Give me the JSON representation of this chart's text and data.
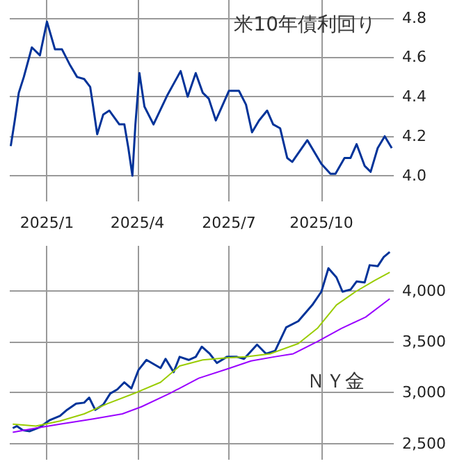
{
  "chart_data": [
    {
      "type": "line",
      "title": "米10年債利回り",
      "marker": "none",
      "grid": true,
      "xlim": [
        "2024-11-25",
        "2025-12-12"
      ],
      "xticks": [
        {
          "value": "2025-01-01",
          "label": "2025/1"
        },
        {
          "value": "2025-04-01",
          "label": "2025/4"
        },
        {
          "value": "2025-07-01",
          "label": "2025/7"
        },
        {
          "value": "2025-10-01",
          "label": "2025/10"
        }
      ],
      "ylim": [
        3.87,
        4.89
      ],
      "yticks": [
        {
          "value": 4.0,
          "label": "4.0"
        },
        {
          "value": 4.2,
          "label": "4.2"
        },
        {
          "value": 4.4,
          "label": "4.4"
        },
        {
          "value": 4.6,
          "label": "4.6"
        },
        {
          "value": 4.8,
          "label": "4.8"
        }
      ],
      "x": [
        "2024-11-26",
        "2024-11-30",
        "2024-12-04",
        "2024-12-09",
        "2024-12-17",
        "2024-12-25",
        "2025-01-01",
        "2025-01-09",
        "2025-01-16",
        "2025-01-24",
        "2025-01-31",
        "2025-02-07",
        "2025-02-13",
        "2025-02-16",
        "2025-02-20",
        "2025-02-26",
        "2025-03-04",
        "2025-03-14",
        "2025-03-19",
        "2025-03-23",
        "2025-03-27",
        "2025-03-30",
        "2025-04-03",
        "2025-04-08",
        "2025-04-17",
        "2025-05-01",
        "2025-05-14",
        "2025-05-21",
        "2025-05-29",
        "2025-06-05",
        "2025-06-11",
        "2025-06-18",
        "2025-07-01",
        "2025-07-11",
        "2025-07-18",
        "2025-07-24",
        "2025-07-31",
        "2025-08-08",
        "2025-08-14",
        "2025-08-21",
        "2025-08-28",
        "2025-09-02",
        "2025-09-17",
        "2025-10-01",
        "2025-10-10",
        "2025-10-15",
        "2025-10-24",
        "2025-10-30",
        "2025-11-05",
        "2025-11-13",
        "2025-11-19",
        "2025-11-26",
        "2025-12-03",
        "2025-12-10"
      ],
      "series": [
        {
          "color": "#003399",
          "values": [
            4.15,
            4.28,
            4.42,
            4.5,
            4.65,
            4.61,
            4.78,
            4.64,
            4.64,
            4.56,
            4.5,
            4.49,
            4.45,
            4.35,
            4.21,
            4.31,
            4.33,
            4.26,
            4.26,
            4.14,
            4.0,
            4.26,
            4.52,
            4.35,
            4.26,
            4.41,
            4.53,
            4.4,
            4.52,
            4.42,
            4.39,
            4.28,
            4.43,
            4.43,
            4.36,
            4.22,
            4.28,
            4.33,
            4.26,
            4.24,
            4.09,
            4.07,
            4.18,
            4.06,
            4.01,
            4.01,
            4.09,
            4.09,
            4.16,
            4.05,
            4.02,
            4.14,
            4.2,
            4.14
          ]
        }
      ]
    },
    {
      "type": "line",
      "title": "ＮＹ金",
      "marker": "none",
      "grid": true,
      "tick_labels": "y",
      "xlim": [
        "2024-11-25",
        "2025-12-12"
      ],
      "xticks": [
        {
          "value": "2025-01-01",
          "label": null
        },
        {
          "value": "2025-04-01",
          "label": null
        },
        {
          "value": "2025-07-01",
          "label": null
        },
        {
          "value": "2025-10-01",
          "label": null
        }
      ],
      "ylim": [
        2340,
        4440
      ],
      "yticks": [
        {
          "value": 2500,
          "label": "2,500"
        },
        {
          "value": 3000,
          "label": "3,000"
        },
        {
          "value": 3500,
          "label": "3,500"
        },
        {
          "value": 4000,
          "label": "4,000"
        }
      ],
      "series": [
        {
          "color": "#003399",
          "x": [
            "2024-11-28",
            "2024-12-02",
            "2024-12-08",
            "2024-12-15",
            "2024-12-25",
            "2025-01-04",
            "2025-01-14",
            "2025-01-21",
            "2025-01-30",
            "2025-02-07",
            "2025-02-12",
            "2025-02-18",
            "2025-02-26",
            "2025-03-05",
            "2025-03-12",
            "2025-03-19",
            "2025-03-26",
            "2025-04-02",
            "2025-04-10",
            "2025-04-24",
            "2025-04-29",
            "2025-05-07",
            "2025-05-13",
            "2025-05-22",
            "2025-05-29",
            "2025-06-04",
            "2025-06-12",
            "2025-06-19",
            "2025-06-29",
            "2025-07-09",
            "2025-07-16",
            "2025-07-29",
            "2025-08-07",
            "2025-08-16",
            "2025-08-27",
            "2025-09-08",
            "2025-09-22",
            "2025-10-01",
            "2025-10-08",
            "2025-10-16",
            "2025-10-22",
            "2025-10-30",
            "2025-11-05",
            "2025-11-13",
            "2025-11-18",
            "2025-11-26",
            "2025-12-02",
            "2025-12-08"
          ],
          "values": [
            2650,
            2670,
            2630,
            2620,
            2660,
            2730,
            2770,
            2830,
            2890,
            2900,
            2950,
            2830,
            2880,
            2990,
            3030,
            3100,
            3040,
            3220,
            3320,
            3240,
            3330,
            3200,
            3350,
            3320,
            3350,
            3450,
            3380,
            3290,
            3350,
            3350,
            3330,
            3470,
            3380,
            3410,
            3640,
            3700,
            3860,
            3990,
            4220,
            4130,
            3990,
            4010,
            4090,
            4080,
            4250,
            4240,
            4330,
            4380
          ]
        },
        {
          "color": "#99cc00",
          "x": [
            "2024-11-28",
            "2024-12-21",
            "2025-01-14",
            "2025-02-07",
            "2025-03-02",
            "2025-03-31",
            "2025-04-24",
            "2025-05-13",
            "2025-06-05",
            "2025-06-29",
            "2025-07-18",
            "2025-08-11",
            "2025-09-08",
            "2025-09-27",
            "2025-10-16",
            "2025-11-04",
            "2025-11-23",
            "2025-12-08"
          ],
          "values": [
            2690,
            2670,
            2720,
            2790,
            2890,
            3000,
            3100,
            3260,
            3320,
            3340,
            3350,
            3380,
            3480,
            3630,
            3860,
            3990,
            4100,
            4180
          ]
        },
        {
          "color": "#9900ff",
          "x": [
            "2024-11-28",
            "2024-12-21",
            "2025-01-14",
            "2025-02-16",
            "2025-03-17",
            "2025-04-05",
            "2025-05-03",
            "2025-06-01",
            "2025-06-29",
            "2025-07-23",
            "2025-08-15",
            "2025-09-03",
            "2025-09-27",
            "2025-10-21",
            "2025-11-14",
            "2025-12-08"
          ],
          "values": [
            2610,
            2650,
            2690,
            2740,
            2790,
            2860,
            2990,
            3140,
            3230,
            3310,
            3350,
            3380,
            3500,
            3630,
            3740,
            3920
          ]
        }
      ]
    }
  ]
}
